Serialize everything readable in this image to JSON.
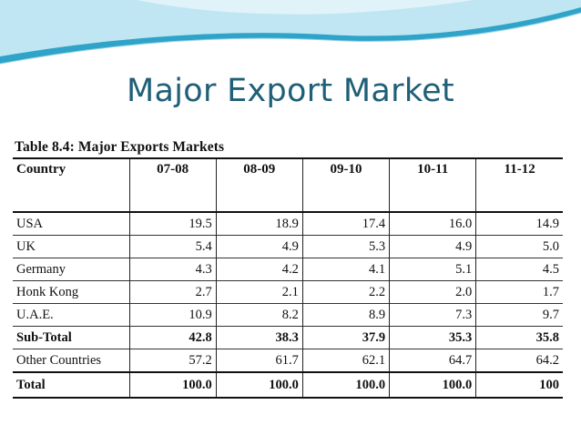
{
  "slide": {
    "title": "Major Export Market"
  },
  "table": {
    "caption": "Table 8.4: Major Exports Markets",
    "headers": [
      "Country",
      "07-08",
      "08-09",
      "09-10",
      "10-11",
      "11-12"
    ],
    "rows": [
      [
        "USA",
        "19.5",
        "18.9",
        "17.4",
        "16.0",
        "14.9"
      ],
      [
        "UK",
        "5.4",
        "4.9",
        "5.3",
        "4.9",
        "5.0"
      ],
      [
        "Germany",
        "4.3",
        "4.2",
        "4.1",
        "5.1",
        "4.5"
      ],
      [
        "Honk Kong",
        "2.7",
        "2.1",
        "2.2",
        "2.0",
        "1.7"
      ],
      [
        "U.A.E.",
        "10.9",
        "8.2",
        "8.9",
        "7.3",
        "9.7"
      ],
      [
        "Sub-Total",
        "42.8",
        "38.3",
        "37.9",
        "35.3",
        "35.8"
      ],
      [
        "Other Countries",
        "57.2",
        "61.7",
        "62.1",
        "64.7",
        "64.2"
      ],
      [
        "Total",
        "100.0",
        "100.0",
        "100.0",
        "100.0",
        "100"
      ]
    ]
  },
  "colors": {
    "title": "#1f5f77",
    "wave_light": "#bfe6f2",
    "wave_dark": "#2fa3c8"
  }
}
